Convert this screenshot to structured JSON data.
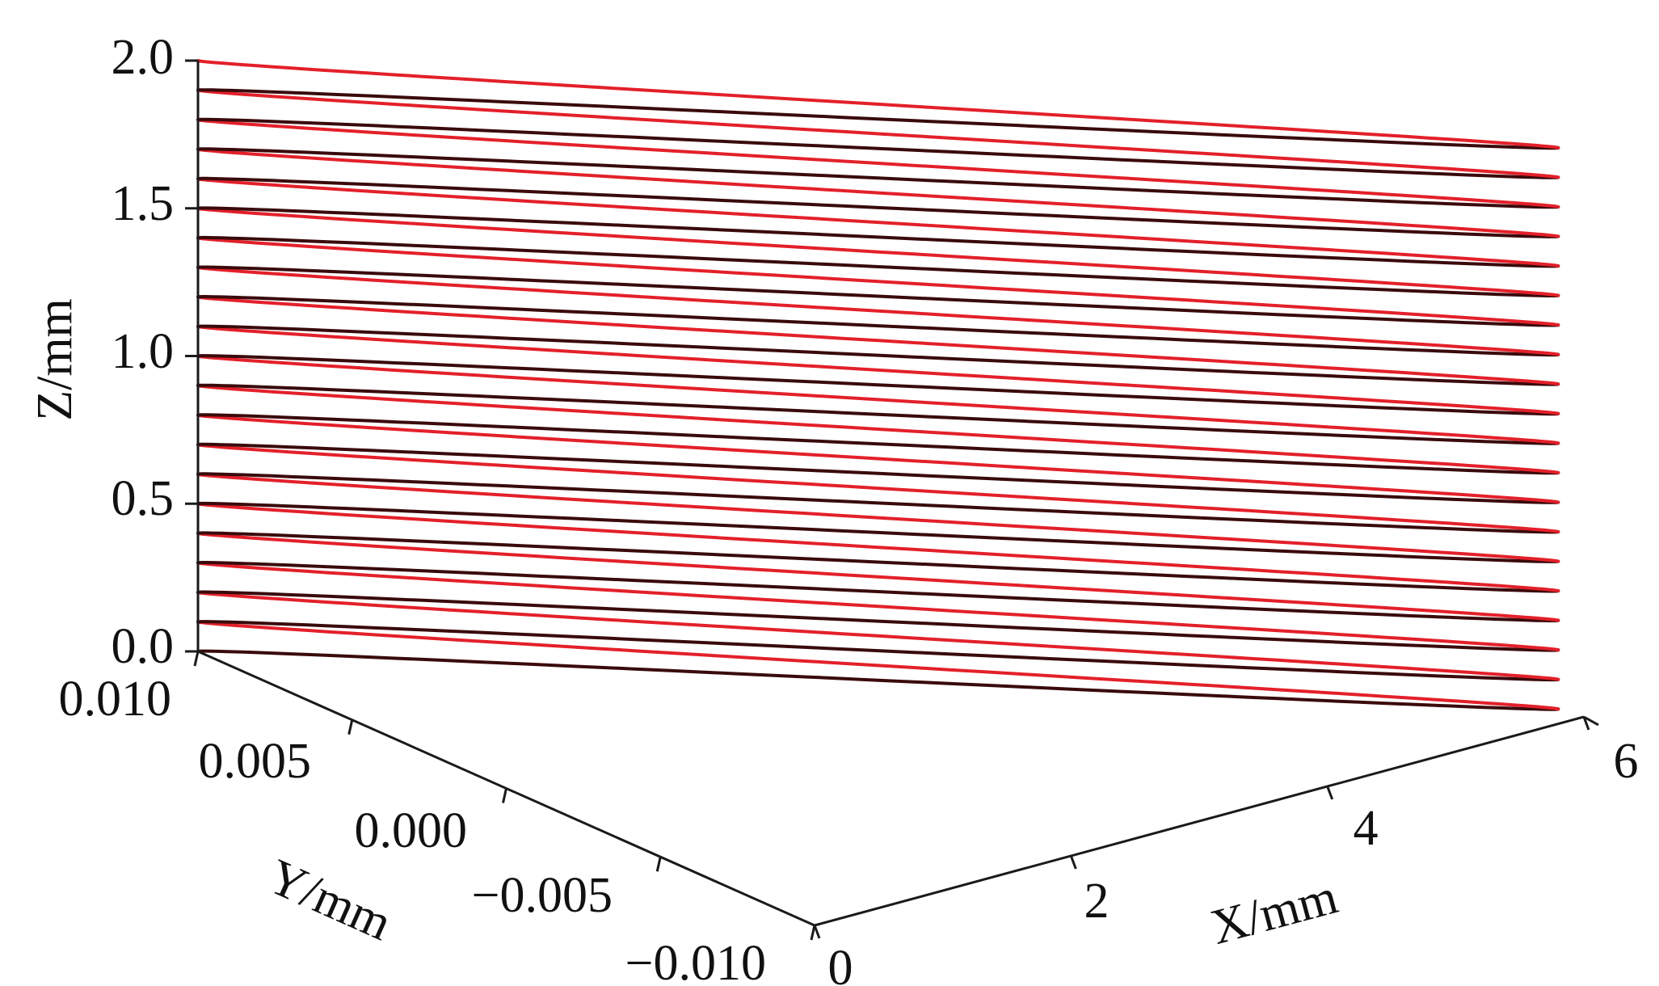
{
  "chart_data": {
    "type": "line",
    "subtype": "3d-helix",
    "title": "",
    "xlabel": "X/mm",
    "ylabel": "Y/mm",
    "zlabel": "Z/mm",
    "x_ticks": [
      "0",
      "2",
      "4",
      "6"
    ],
    "y_ticks": [
      "0.010",
      "0.005",
      "0.000",
      "−0.005",
      "−0.010"
    ],
    "z_ticks": [
      "0.0",
      "0.5",
      "1.0",
      "1.5",
      "2.0"
    ],
    "xlim": [
      0,
      6
    ],
    "ylim": [
      -0.01,
      0.01
    ],
    "zlim": [
      0,
      2.0
    ],
    "grid": false,
    "series": [
      {
        "color": "#e3202a",
        "dark_color": "#3a0a0c",
        "turns": 20,
        "x_start": 0,
        "x_end": 5.8,
        "y_amplitude": 0.01,
        "z_start": 0,
        "z_end": 2.0
      }
    ]
  }
}
